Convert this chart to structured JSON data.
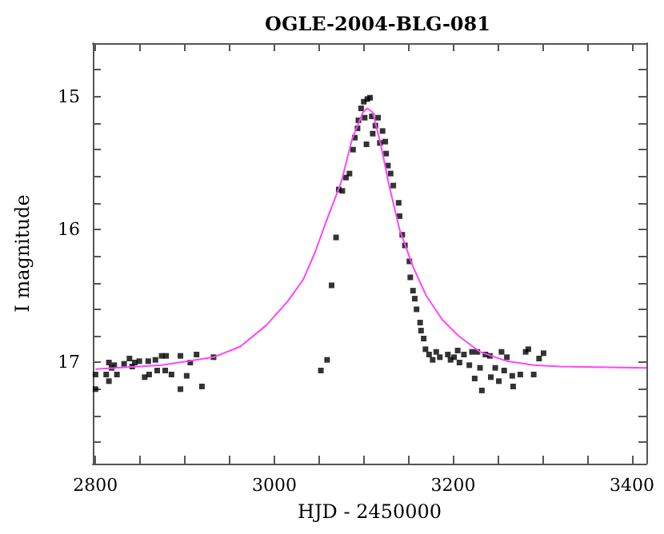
{
  "chart_data": {
    "type": "scatter",
    "title": "OGLE-2004-BLG-081",
    "xlabel": "HJD - 2450000",
    "ylabel": "I magnitude",
    "xlim": [
      2797,
      3416
    ],
    "ylim": [
      17.76,
      14.6
    ],
    "xticks": [
      2800,
      {
        "value": 2850,
        "label": null
      },
      {
        "value": 2900,
        "label": null
      },
      {
        "value": 2950,
        "label": null
      },
      3000,
      {
        "value": 3050,
        "label": null
      },
      {
        "value": 3100,
        "label": null
      },
      {
        "value": 3150,
        "label": null
      },
      3200,
      {
        "value": 3250,
        "label": null
      },
      {
        "value": 3300,
        "label": null
      },
      {
        "value": 3350,
        "label": null
      },
      3400
    ],
    "yticks": [
      {
        "value": 14.8,
        "label": null
      },
      15,
      {
        "value": 15.2,
        "label": null
      },
      {
        "value": 15.4,
        "label": null
      },
      {
        "value": 15.6,
        "label": null
      },
      {
        "value": 15.8,
        "label": null
      },
      16,
      {
        "value": 16.2,
        "label": null
      },
      {
        "value": 16.4,
        "label": null
      },
      {
        "value": 16.6,
        "label": null
      },
      {
        "value": 16.8,
        "label": null
      },
      17,
      {
        "value": 17.2,
        "label": null
      },
      {
        "value": 17.4,
        "label": null
      },
      {
        "value": 17.6,
        "label": null
      }
    ],
    "grid": false,
    "series": [
      {
        "type": "line",
        "color": "#ff44ff",
        "marker": "none",
        "line_style": "solid",
        "x": [
          2800,
          2874,
          2932,
          2962,
          2991,
          3015,
          3032,
          3045,
          3058,
          3075,
          3087,
          3099,
          3104,
          3110,
          3119,
          3128,
          3140,
          3155,
          3170,
          3188,
          3206,
          3230,
          3260,
          3290,
          3319,
          3416
        ],
        "values": [
          17.05,
          17.02,
          16.96,
          16.88,
          16.72,
          16.54,
          16.38,
          16.18,
          15.94,
          15.64,
          15.32,
          15.12,
          15.09,
          15.12,
          15.36,
          15.66,
          16.0,
          16.28,
          16.5,
          16.68,
          16.8,
          16.92,
          16.99,
          17.02,
          17.03,
          17.04
        ]
      },
      {
        "color": "#000000",
        "marker": "square",
        "x": [
          2800,
          2800,
          2812,
          2815,
          2815,
          2818,
          2821,
          2824,
          2832,
          2838,
          2841,
          2844,
          2849,
          2855,
          2859,
          2860,
          2867,
          2869,
          2874,
          2879,
          2878,
          2885,
          2895,
          2895,
          2902,
          2906,
          2913,
          2919,
          2932,
          3052,
          3059,
          3064,
          3069,
          3072,
          3076,
          3080,
          3084,
          3088,
          3090,
          3093,
          3094,
          3097,
          3100,
          3101,
          3103,
          3104,
          3107,
          3109,
          3110,
          3113,
          3116,
          3118,
          3121,
          3124,
          3125,
          3127,
          3130,
          3133,
          3139,
          3140,
          3143,
          3146,
          3151,
          3152,
          3155,
          3157,
          3159,
          3163,
          3164,
          3167,
          3169,
          3173,
          3177,
          3181,
          3185,
          3194,
          3197,
          3201,
          3205,
          3207,
          3212,
          3218,
          3221,
          3224,
          3227,
          3230,
          3232,
          3236,
          3241,
          3242,
          3247,
          3251,
          3254,
          3257,
          3260,
          3266,
          3267,
          3275,
          3281,
          3284,
          3290,
          3296,
          3301
        ],
        "values": [
          17.09,
          17.2,
          17.09,
          17.0,
          17.14,
          17.04,
          17.02,
          17.09,
          17.01,
          16.97,
          17.03,
          17.0,
          16.99,
          17.11,
          16.99,
          17.09,
          16.98,
          17.06,
          16.95,
          16.95,
          17.06,
          17.09,
          16.95,
          17.2,
          17.1,
          17.0,
          16.94,
          17.18,
          16.96,
          17.06,
          16.98,
          16.42,
          16.06,
          15.7,
          15.71,
          15.61,
          15.58,
          15.4,
          15.31,
          15.24,
          15.18,
          15.09,
          15.04,
          15.16,
          15.36,
          15.02,
          15.01,
          15.15,
          15.28,
          15.22,
          15.16,
          15.35,
          15.26,
          15.34,
          15.43,
          15.52,
          15.58,
          15.67,
          15.8,
          15.9,
          16.04,
          16.12,
          16.24,
          16.36,
          16.46,
          16.52,
          16.6,
          16.7,
          16.76,
          16.82,
          16.9,
          16.94,
          16.98,
          16.92,
          16.96,
          16.94,
          16.98,
          16.96,
          16.91,
          17.0,
          16.94,
          17.02,
          16.92,
          17.12,
          16.92,
          17.04,
          17.21,
          16.94,
          16.95,
          17.11,
          17.04,
          17.14,
          16.92,
          17.06,
          16.96,
          17.1,
          17.18,
          17.09,
          16.92,
          16.9,
          17.09,
          16.97,
          16.93
        ]
      }
    ]
  }
}
